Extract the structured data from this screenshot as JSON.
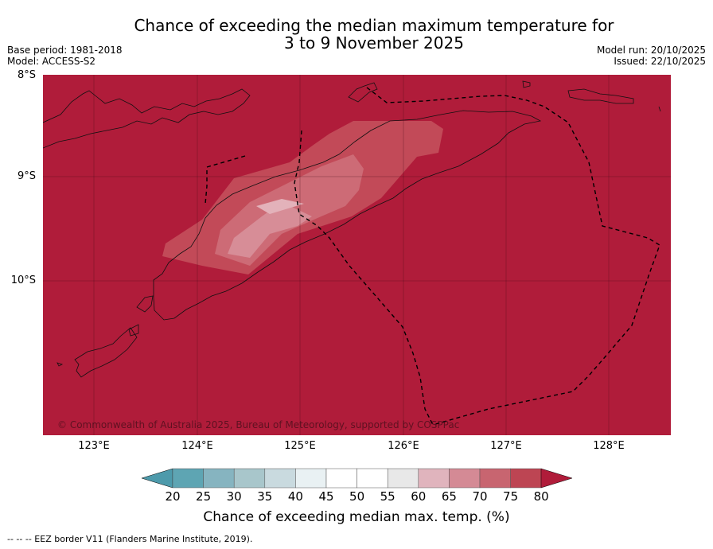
{
  "title": {
    "line1": "Chance of exceeding the median maximum temperature for",
    "line2": "3 to 9 November 2025"
  },
  "meta_left": {
    "base_period": "Base period: 1981-2018",
    "model": "Model: ACCESS-S2"
  },
  "meta_right": {
    "model_run": "Model run: 20/10/2025",
    "issued": "Issued: 22/10/2025"
  },
  "latitude_labels": [
    "8°S",
    "9°S",
    "10°S"
  ],
  "longitude_labels": [
    "123°E",
    "124°E",
    "125°E",
    "126°E",
    "127°E",
    "128°E"
  ],
  "copyright": "© Commonwealth of Australia 2025, Bureau of Meteorology, supported by COSPPac",
  "colorbar": {
    "ticks": [
      "20",
      "25",
      "30",
      "35",
      "40",
      "45",
      "50",
      "55",
      "60",
      "65",
      "70",
      "75",
      "80"
    ],
    "colors": [
      "#5ea5b3",
      "#86b4c0",
      "#a8c6cb",
      "#c9dadf",
      "#e9f1f3",
      "#ffffff",
      "#ffffff",
      "#e8e8e8",
      "#e0b4bd",
      "#d48a95",
      "#c86570",
      "#bd4553"
    ],
    "under_color": "#4d9aab",
    "over_color": "#b01c3a",
    "label": "Chance of exceeding median max. temp. (%)"
  },
  "map_colors": {
    "background": "#b01c3a",
    "band_75": "#c24a58",
    "band_70": "#cd6b76",
    "band_65": "#d78d97",
    "band_60": "#e3b2ba"
  },
  "footer": "--  --  -- EEZ border V11 (Flanders Marine Institute, 2019)."
}
